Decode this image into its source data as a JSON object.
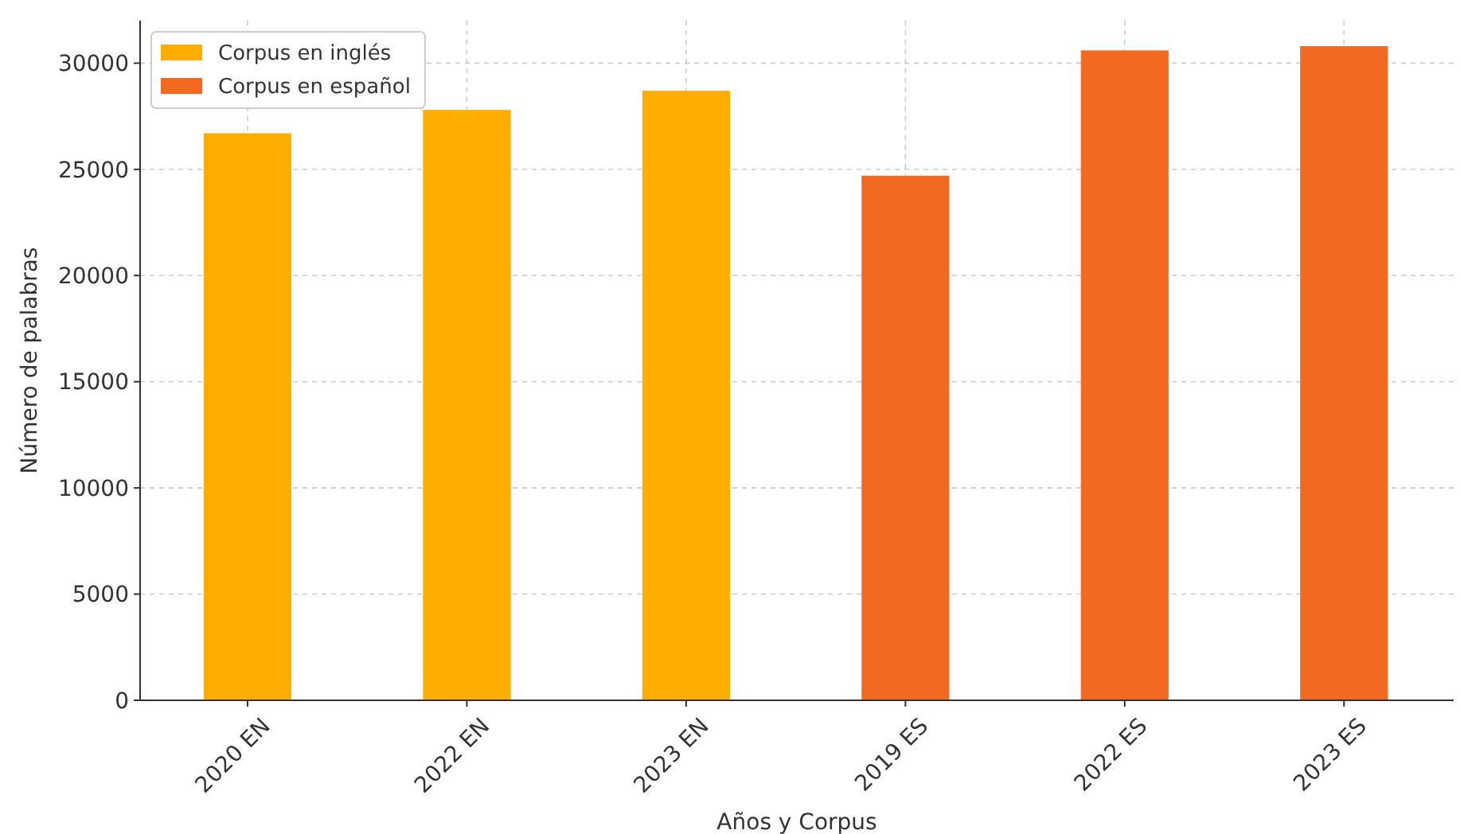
{
  "chart_data": {
    "type": "bar",
    "xlabel": "Años y Corpus",
    "ylabel": "Número de palabras",
    "categories": [
      "2020 EN",
      "2022 EN",
      "2023 EN",
      "2019 ES",
      "2022 ES",
      "2023 ES"
    ],
    "series": [
      {
        "name": "Corpus en inglés",
        "color": "#ffae00",
        "values": [
          26700,
          27800,
          28700,
          null,
          null,
          null
        ]
      },
      {
        "name": "Corpus en español",
        "color": "#f26a22",
        "values": [
          null,
          null,
          null,
          24700,
          30600,
          30800
        ]
      }
    ],
    "ylim": [
      0,
      32000
    ],
    "yticks": [
      0,
      5000,
      10000,
      15000,
      20000,
      25000,
      30000
    ],
    "grid": true,
    "legend": "top left"
  }
}
